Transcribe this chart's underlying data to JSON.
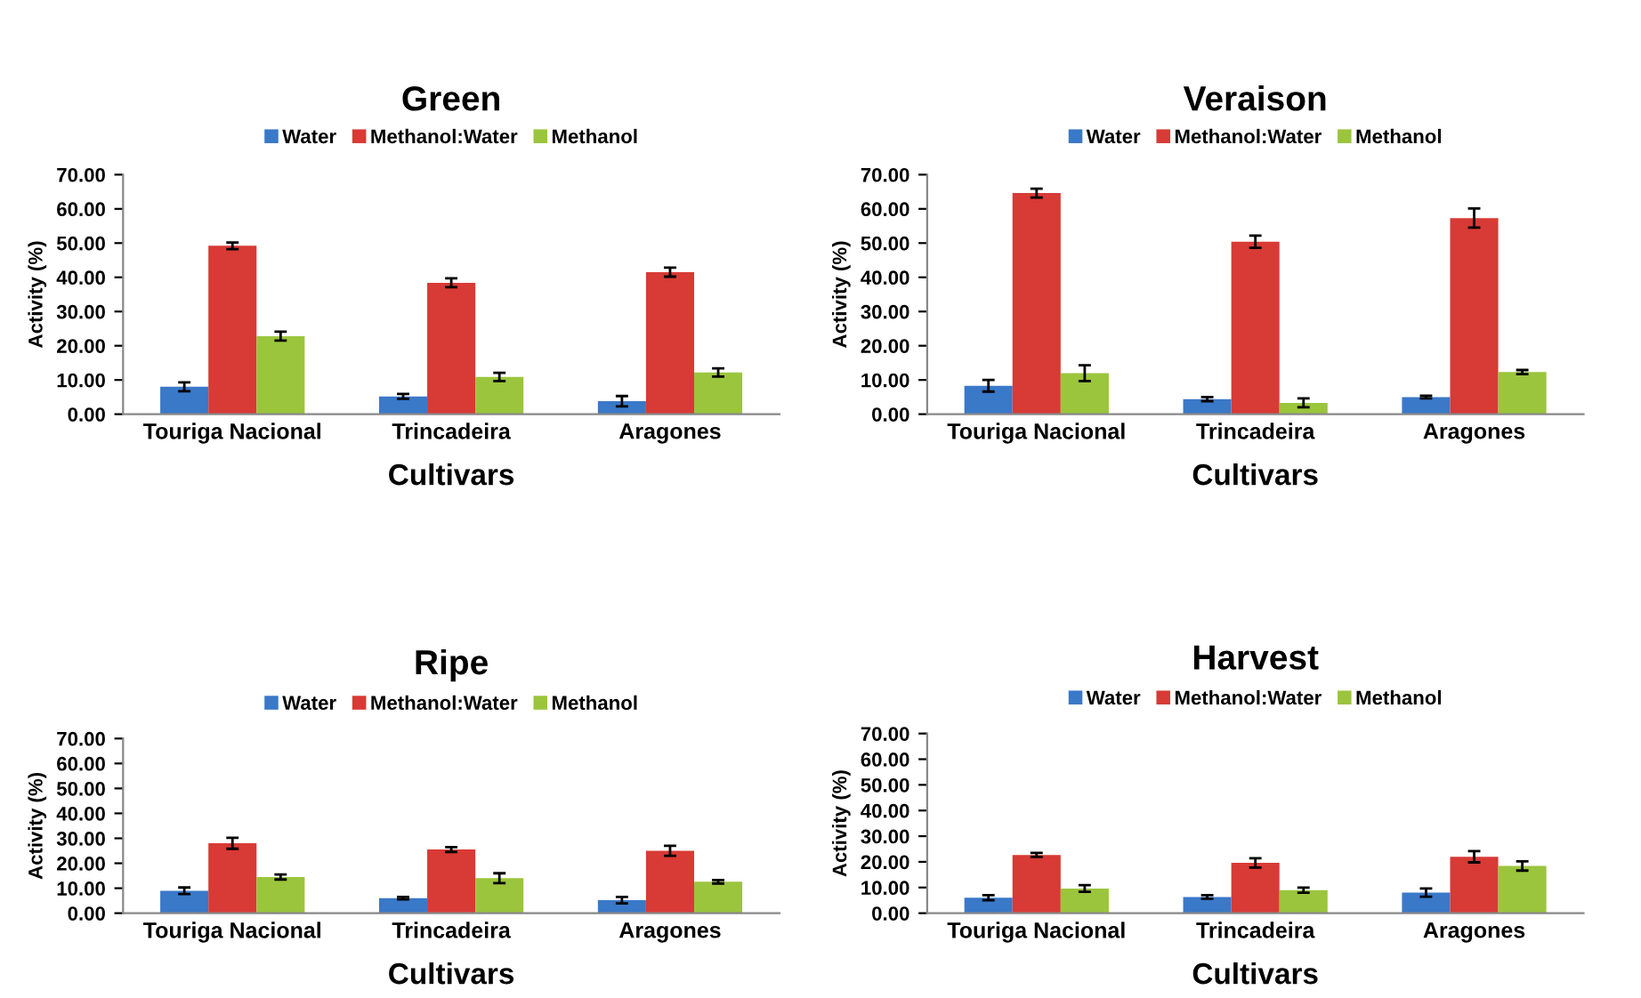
{
  "chart_data": [
    {
      "type": "bar",
      "title": "Green",
      "xlabel": "Cultivars",
      "ylabel": "Activity (%)",
      "categories": [
        "Touriga Nacional",
        "Trincadeira",
        "Aragones"
      ],
      "ylim": [
        0,
        70
      ],
      "yticks": [
        {
          "value": 0,
          "label": "0.00"
        },
        {
          "value": 10,
          "label": "10.00"
        },
        {
          "value": 20,
          "label": "20.00"
        },
        {
          "value": 30,
          "label": "30.00"
        },
        {
          "value": 40,
          "label": "40.00"
        },
        {
          "value": 50,
          "label": "50.00"
        },
        {
          "value": 60,
          "label": "60.00"
        },
        {
          "value": 70,
          "label": "70.00"
        }
      ],
      "legend": "top",
      "series": [
        {
          "name": "Water",
          "color": "#3a78c8",
          "values": [
            8.0,
            5.2,
            3.8
          ],
          "errors": [
            1.3,
            0.7,
            1.5
          ]
        },
        {
          "name": "Methanol:Water",
          "color": "#d83a35",
          "values": [
            49.2,
            38.4,
            41.5
          ],
          "errors": [
            1.0,
            1.3,
            1.3
          ]
        },
        {
          "name": "Methanol",
          "color": "#9bc53d",
          "values": [
            22.8,
            10.9,
            12.2
          ],
          "errors": [
            1.3,
            1.2,
            1.2
          ]
        }
      ]
    },
    {
      "type": "bar",
      "title": "Veraison",
      "xlabel": "Cultivars",
      "ylabel": "Activity (%)",
      "categories": [
        "Touriga Nacional",
        "Trincadeira",
        "Aragones"
      ],
      "ylim": [
        0,
        70
      ],
      "yticks": [
        {
          "value": 0,
          "label": "0.00"
        },
        {
          "value": 10,
          "label": "10.00"
        },
        {
          "value": 20,
          "label": "20.00"
        },
        {
          "value": 30,
          "label": "30.00"
        },
        {
          "value": 40,
          "label": "40.00"
        },
        {
          "value": 50,
          "label": "50.00"
        },
        {
          "value": 60,
          "label": "60.00"
        },
        {
          "value": 70,
          "label": "70.00"
        }
      ],
      "legend": "top",
      "series": [
        {
          "name": "Water",
          "color": "#3a78c8",
          "values": [
            8.3,
            4.4,
            5.0
          ],
          "errors": [
            1.7,
            0.6,
            0.4
          ]
        },
        {
          "name": "Methanol:Water",
          "color": "#d83a35",
          "values": [
            64.6,
            50.4,
            57.3
          ],
          "errors": [
            1.3,
            1.8,
            2.8
          ]
        },
        {
          "name": "Methanol",
          "color": "#9bc53d",
          "values": [
            12.0,
            3.3,
            12.3
          ],
          "errors": [
            2.3,
            1.3,
            0.6
          ]
        }
      ]
    },
    {
      "type": "bar",
      "title": "Ripe",
      "xlabel": "Cultivars",
      "ylabel": "Activity (%)",
      "categories": [
        "Touriga Nacional",
        "Trincadeira",
        "Aragones"
      ],
      "ylim": [
        0,
        70
      ],
      "yticks": [
        {
          "value": 0,
          "label": "0.00"
        },
        {
          "value": 10,
          "label": "10.00"
        },
        {
          "value": 20,
          "label": "20.00"
        },
        {
          "value": 30,
          "label": "30.00"
        },
        {
          "value": 40,
          "label": "40.00"
        },
        {
          "value": 50,
          "label": "50.00"
        },
        {
          "value": 60,
          "label": "60.00"
        },
        {
          "value": 70,
          "label": "70.00"
        }
      ],
      "legend": "top",
      "series": [
        {
          "name": "Water",
          "color": "#3a78c8",
          "values": [
            9.0,
            6.0,
            5.2
          ],
          "errors": [
            1.3,
            0.5,
            1.3
          ]
        },
        {
          "name": "Methanol:Water",
          "color": "#d83a35",
          "values": [
            28.0,
            25.5,
            25.0
          ],
          "errors": [
            2.2,
            1.0,
            2.0
          ]
        },
        {
          "name": "Methanol",
          "color": "#9bc53d",
          "values": [
            14.5,
            14.0,
            12.6
          ],
          "errors": [
            1.0,
            2.0,
            0.7
          ]
        }
      ]
    },
    {
      "type": "bar",
      "title": "Harvest",
      "xlabel": "Cultivars",
      "ylabel": "Activity (%)",
      "categories": [
        "Touriga Nacional",
        "Trincadeira",
        "Aragones"
      ],
      "ylim": [
        0,
        70
      ],
      "yticks": [
        {
          "value": 0,
          "label": "0.00"
        },
        {
          "value": 10,
          "label": "10.00"
        },
        {
          "value": 20,
          "label": "20.00"
        },
        {
          "value": 30,
          "label": "30.00"
        },
        {
          "value": 40,
          "label": "40.00"
        },
        {
          "value": 50,
          "label": "50.00"
        },
        {
          "value": 60,
          "label": "60.00"
        },
        {
          "value": 70,
          "label": "70.00"
        }
      ],
      "legend": "top",
      "series": [
        {
          "name": "Water",
          "color": "#3a78c8",
          "values": [
            6.0,
            6.3,
            8.0
          ],
          "errors": [
            1.0,
            0.7,
            1.6
          ]
        },
        {
          "name": "Methanol:Water",
          "color": "#d83a35",
          "values": [
            22.7,
            19.6,
            22.0
          ],
          "errors": [
            0.8,
            1.8,
            2.2
          ]
        },
        {
          "name": "Methanol",
          "color": "#9bc53d",
          "values": [
            9.6,
            9.0,
            18.4
          ],
          "errors": [
            1.3,
            1.0,
            1.8
          ]
        }
      ]
    }
  ]
}
